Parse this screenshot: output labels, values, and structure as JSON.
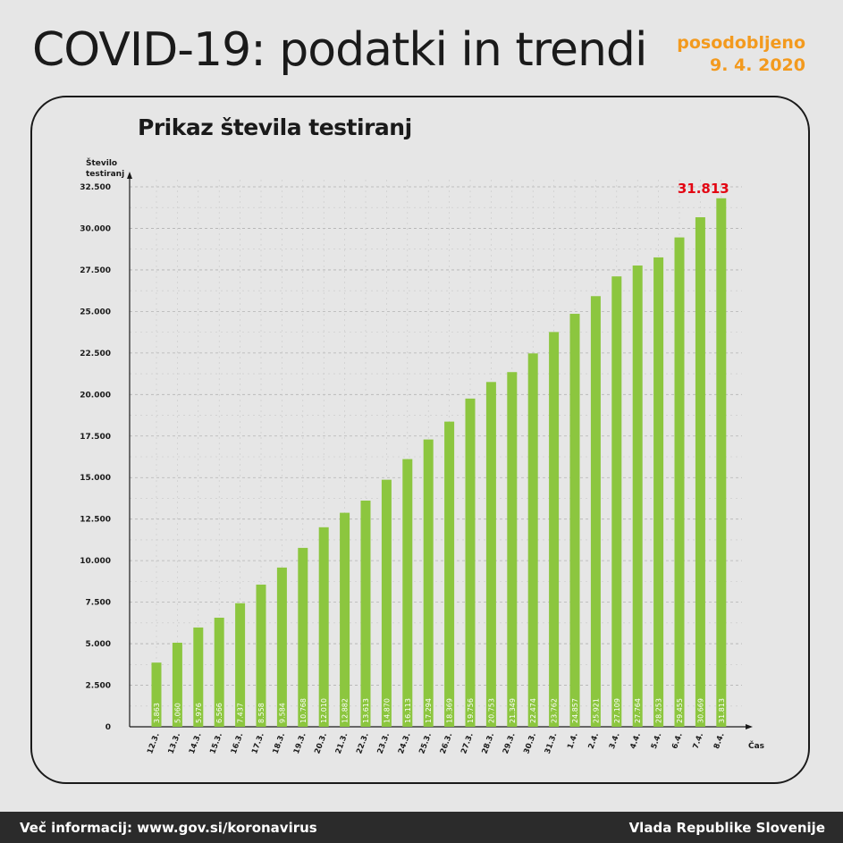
{
  "header": {
    "title": "COVID-19: podatki in trendi",
    "updated_label": "posodobljeno",
    "updated_date": "9. 4. 2020"
  },
  "footer": {
    "info": "Več informacij: www.gov.si/koronavirus",
    "org": "Vlada Republike Slovenije"
  },
  "colors": {
    "bar": "#8cc63f",
    "highlight": "#e30613",
    "accent": "#f39a1e",
    "axis": "#1a1a1a"
  },
  "chart_data": {
    "type": "bar",
    "title": "Prikaz števila testiranj",
    "ylabel_line1": "Število",
    "ylabel_line2": "testiranj",
    "xlabel": "Čas",
    "ylim": [
      0,
      32500
    ],
    "yticks": [
      0,
      2500,
      5000,
      7500,
      10000,
      12500,
      15000,
      17500,
      20000,
      22500,
      25000,
      27500,
      30000,
      32500
    ],
    "ytick_labels": [
      "0",
      "2.500",
      "5.000",
      "7.500",
      "10.000",
      "12.500",
      "15.000",
      "17.500",
      "20.000",
      "22.500",
      "25.000",
      "27.500",
      "30.000",
      "32.500"
    ],
    "grid": true,
    "categories": [
      "12.3.",
      "13.3.",
      "14.3.",
      "15.3.",
      "16.3.",
      "17.3.",
      "18.3.",
      "19.3.",
      "20.3.",
      "21.3.",
      "22.3.",
      "23.3.",
      "24.3.",
      "25.3.",
      "26.3.",
      "27.3.",
      "28.3.",
      "29.3.",
      "30.3.",
      "31.3.",
      "1.4.",
      "2.4.",
      "3.4.",
      "4.4.",
      "5.4.",
      "6.4.",
      "7.4.",
      "8.4."
    ],
    "values": [
      3863,
      5060,
      5976,
      6566,
      7437,
      8558,
      9584,
      10768,
      12010,
      12882,
      13613,
      14870,
      16113,
      17294,
      18369,
      19756,
      20753,
      21349,
      22474,
      23762,
      24857,
      25921,
      27109,
      27764,
      28253,
      29455,
      30669,
      31813
    ],
    "value_labels": [
      "3.863",
      "5.060",
      "5.976",
      "6.566",
      "7.437",
      "8.558",
      "9.584",
      "10.768",
      "12.010",
      "12.882",
      "13.613",
      "14.870",
      "16.113",
      "17.294",
      "18.369",
      "19.756",
      "20.753",
      "21.349",
      "22.474",
      "23.762",
      "24.857",
      "25.921",
      "27.109",
      "27.764",
      "28.253",
      "29.455",
      "30.669",
      "31.813"
    ],
    "highlight_label": "31.813"
  }
}
